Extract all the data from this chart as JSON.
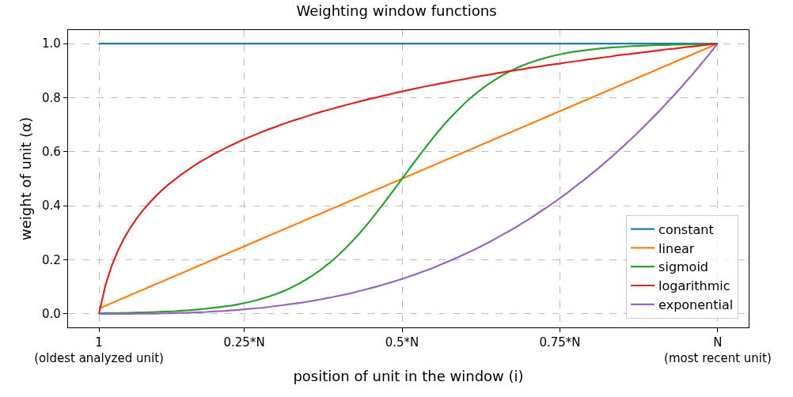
{
  "chart_data": {
    "type": "line",
    "title": "Weighting window functions",
    "xlabel": "position of unit in the window (i)",
    "ylabel": "weight of unit (α)",
    "categories": [
      "1\n(oldest analyzed unit)",
      null,
      null,
      null,
      null,
      null,
      null,
      null,
      null,
      null,
      null,
      null,
      null,
      null,
      null,
      null,
      null,
      null,
      null,
      null,
      null,
      null,
      null,
      "0.25*N",
      null,
      null,
      null,
      null,
      null,
      null,
      null,
      null,
      null,
      null,
      null,
      null,
      null,
      null,
      null,
      null,
      null,
      null,
      null,
      null,
      null,
      null,
      null,
      null,
      "0.5*N",
      null,
      null,
      null,
      null,
      null,
      null,
      null,
      null,
      null,
      null,
      null,
      null,
      null,
      null,
      null,
      null,
      null,
      null,
      null,
      null,
      null,
      null,
      null,
      null,
      "0.75*N",
      null,
      null,
      null,
      null,
      null,
      null,
      null,
      null,
      null,
      null,
      null,
      null,
      null,
      null,
      null,
      null,
      null,
      null,
      null,
      null,
      null,
      null,
      null,
      null,
      "N\n(most recent unit)"
    ],
    "series": [
      {
        "name": "constant",
        "color": "#1f77b4",
        "values": [
          1,
          1,
          1,
          1,
          1,
          1,
          1,
          1,
          1,
          1,
          1,
          1,
          1,
          1,
          1,
          1,
          1,
          1,
          1,
          1,
          1,
          1,
          1,
          1,
          1,
          1,
          1,
          1,
          1,
          1,
          1,
          1,
          1,
          1,
          1,
          1,
          1,
          1,
          1,
          1,
          1,
          1,
          1,
          1,
          1,
          1,
          1,
          1,
          1,
          1,
          1,
          1,
          1,
          1,
          1,
          1,
          1,
          1,
          1,
          1,
          1,
          1,
          1,
          1,
          1,
          1,
          1,
          1,
          1,
          1,
          1,
          1,
          1,
          1,
          1,
          1,
          1,
          1,
          1,
          1,
          1,
          1,
          1,
          1,
          1,
          1,
          1,
          1,
          1,
          1,
          1,
          1,
          1,
          1,
          1,
          1,
          1,
          1,
          1
        ]
      },
      {
        "name": "linear",
        "color": "#ff7f0e",
        "values": [
          0.02,
          0.03,
          0.04,
          0.05,
          0.06,
          0.07,
          0.08,
          0.09,
          0.1,
          0.11,
          0.12,
          0.13,
          0.14,
          0.15,
          0.16,
          0.17,
          0.18,
          0.19,
          0.2,
          0.21,
          0.22,
          0.23,
          0.24,
          0.25,
          0.26,
          0.27,
          0.28,
          0.29,
          0.3,
          0.31,
          0.32,
          0.33,
          0.34,
          0.35,
          0.36,
          0.37,
          0.38,
          0.39,
          0.4,
          0.41,
          0.42,
          0.43,
          0.44,
          0.45,
          0.46,
          0.47,
          0.48,
          0.49,
          0.5,
          0.51,
          0.52,
          0.53,
          0.54,
          0.55,
          0.56,
          0.57,
          0.58,
          0.59,
          0.6,
          0.61,
          0.62,
          0.63,
          0.64,
          0.65,
          0.66,
          0.67,
          0.68,
          0.69,
          0.7,
          0.71,
          0.72,
          0.73,
          0.74,
          0.75,
          0.76,
          0.77,
          0.78,
          0.79,
          0.8,
          0.81,
          0.82,
          0.83,
          0.84,
          0.85,
          0.86,
          0.87,
          0.88,
          0.89,
          0.9,
          0.91,
          0.92,
          0.93,
          0.94,
          0.95,
          0.96,
          0.97,
          0.98,
          0.99,
          1
        ]
      },
      {
        "name": "sigmoid",
        "color": "#2ca02c",
        "values": [
          0.002,
          0.003,
          0.003,
          0.003,
          0.004,
          0.004,
          0.005,
          0.005,
          0.006,
          0.007,
          0.008,
          0.009,
          0.01,
          0.012,
          0.013,
          0.015,
          0.017,
          0.019,
          0.022,
          0.025,
          0.028,
          0.031,
          0.035,
          0.04,
          0.045,
          0.051,
          0.058,
          0.065,
          0.073,
          0.082,
          0.092,
          0.104,
          0.116,
          0.13,
          0.145,
          0.161,
          0.179,
          0.198,
          0.219,
          0.242,
          0.266,
          0.291,
          0.318,
          0.346,
          0.376,
          0.406,
          0.437,
          0.468,
          0.5,
          0.532,
          0.563,
          0.594,
          0.624,
          0.654,
          0.682,
          0.709,
          0.734,
          0.758,
          0.781,
          0.802,
          0.821,
          0.839,
          0.855,
          0.87,
          0.884,
          0.896,
          0.908,
          0.918,
          0.927,
          0.935,
          0.942,
          0.949,
          0.955,
          0.96,
          0.965,
          0.969,
          0.972,
          0.975,
          0.978,
          0.981,
          0.983,
          0.985,
          0.987,
          0.988,
          0.99,
          0.991,
          0.992,
          0.993,
          0.994,
          0.995,
          0.995,
          0.996,
          0.996,
          0.997,
          0.997,
          0.997,
          0.998,
          0.998,
          1
        ]
      },
      {
        "name": "logarithmic",
        "color": "#d62728",
        "values": [
          0,
          0.104,
          0.177,
          0.234,
          0.281,
          0.32,
          0.354,
          0.384,
          0.411,
          0.436,
          0.458,
          0.479,
          0.497,
          0.515,
          0.531,
          0.547,
          0.562,
          0.575,
          0.589,
          0.601,
          0.613,
          0.624,
          0.635,
          0.646,
          0.656,
          0.665,
          0.675,
          0.684,
          0.692,
          0.701,
          0.709,
          0.717,
          0.724,
          0.732,
          0.739,
          0.746,
          0.753,
          0.759,
          0.766,
          0.772,
          0.778,
          0.784,
          0.79,
          0.796,
          0.801,
          0.807,
          0.812,
          0.818,
          0.823,
          0.828,
          0.833,
          0.838,
          0.843,
          0.847,
          0.852,
          0.856,
          0.861,
          0.865,
          0.869,
          0.874,
          0.878,
          0.882,
          0.886,
          0.89,
          0.894,
          0.898,
          0.901,
          0.905,
          0.909,
          0.913,
          0.916,
          0.92,
          0.923,
          0.926,
          0.93,
          0.933,
          0.936,
          0.94,
          0.943,
          0.946,
          0.949,
          0.952,
          0.956,
          0.959,
          0.961,
          0.964,
          0.967,
          0.97,
          0.973,
          0.976,
          0.979,
          0.981,
          0.984,
          0.987,
          0.989,
          0.992,
          0.995,
          0.997,
          1
        ]
      },
      {
        "name": "exponential",
        "color": "#9467bd",
        "values": [
          0,
          0,
          0,
          0,
          0,
          0,
          0.001,
          0.001,
          0.001,
          0.001,
          0.002,
          0.002,
          0.003,
          0.004,
          0.004,
          0.005,
          0.006,
          0.007,
          0.009,
          0.01,
          0.011,
          0.013,
          0.015,
          0.017,
          0.019,
          0.021,
          0.023,
          0.026,
          0.029,
          0.032,
          0.035,
          0.038,
          0.041,
          0.045,
          0.049,
          0.053,
          0.058,
          0.062,
          0.067,
          0.072,
          0.077,
          0.083,
          0.089,
          0.095,
          0.101,
          0.108,
          0.115,
          0.122,
          0.129,
          0.137,
          0.145,
          0.154,
          0.162,
          0.171,
          0.181,
          0.191,
          0.201,
          0.211,
          0.222,
          0.233,
          0.244,
          0.256,
          0.268,
          0.281,
          0.294,
          0.307,
          0.32,
          0.335,
          0.349,
          0.364,
          0.38,
          0.395,
          0.411,
          0.428,
          0.445,
          0.463,
          0.481,
          0.499,
          0.518,
          0.537,
          0.557,
          0.577,
          0.598,
          0.619,
          0.641,
          0.663,
          0.686,
          0.709,
          0.733,
          0.757,
          0.782,
          0.807,
          0.833,
          0.86,
          0.886,
          0.914,
          0.942,
          0.971,
          1
        ]
      }
    ],
    "ylim": [
      -0.05,
      1.05
    ],
    "yticks": [
      {
        "value": 0,
        "label": "0.0"
      },
      {
        "value": 0.2,
        "label": "0.2"
      },
      {
        "value": 0.4,
        "label": "0.4"
      },
      {
        "value": 0.6,
        "label": "0.6"
      },
      {
        "value": 0.8,
        "label": "0.8"
      },
      {
        "value": 1,
        "label": "1.0"
      }
    ],
    "grid": true,
    "legend": "bottom right",
    "marker": "none",
    "line_style": "solid"
  }
}
